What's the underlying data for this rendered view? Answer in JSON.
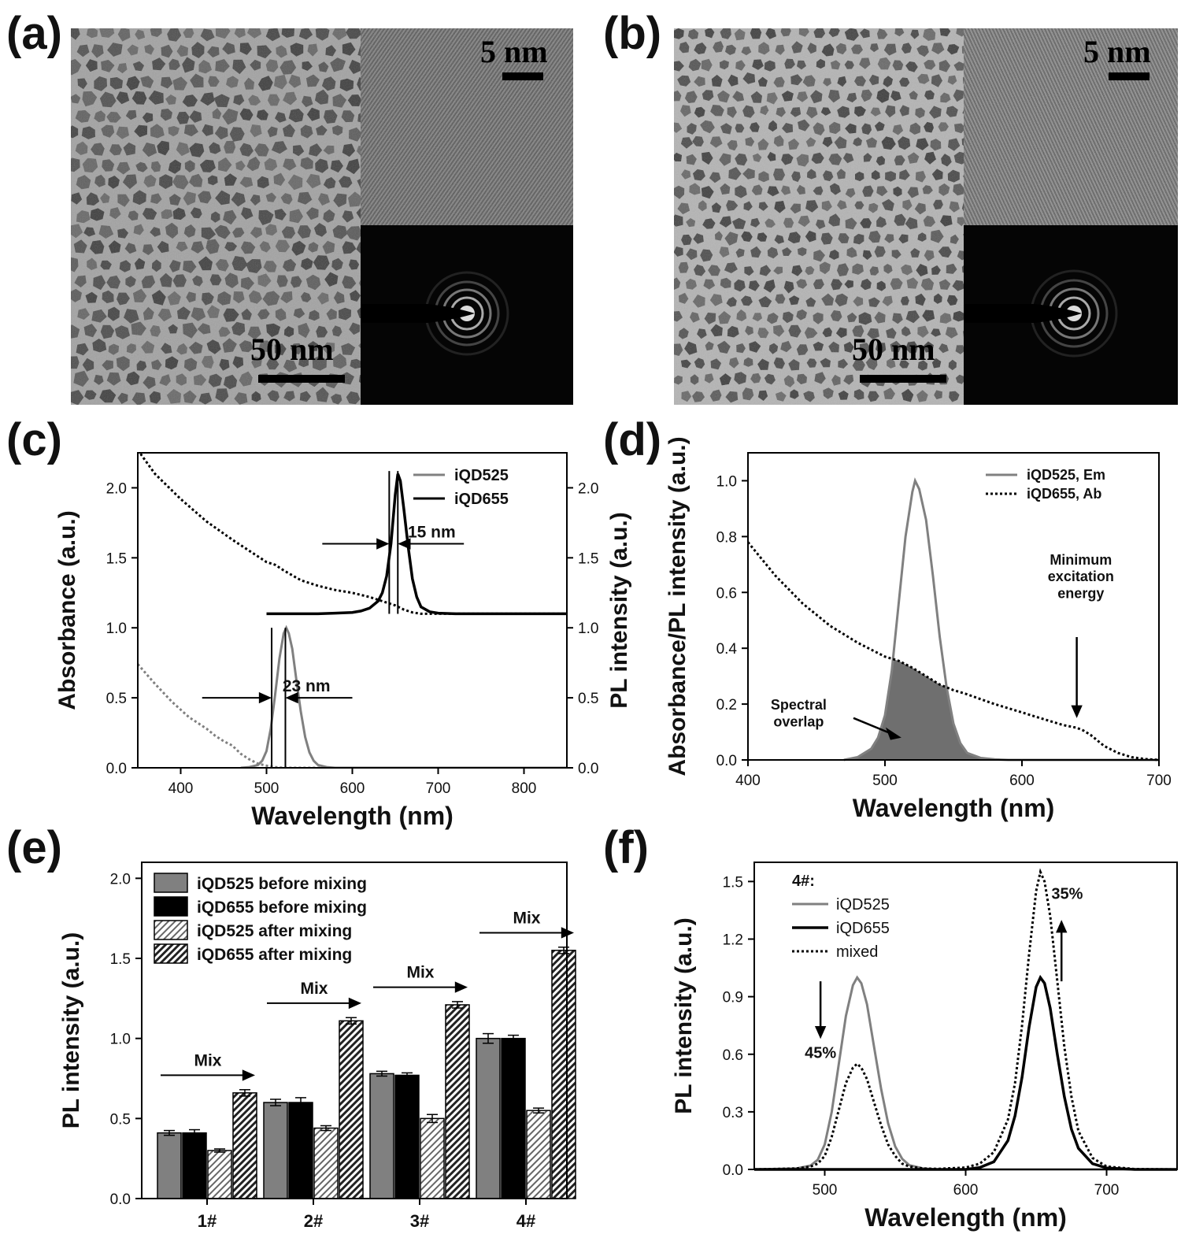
{
  "panels": {
    "a": {
      "label": "(a)",
      "main_scale": "50 nm",
      "inset_scale": "5 nm"
    },
    "b": {
      "label": "(b)",
      "main_scale": "50 nm",
      "inset_scale": "5 nm"
    },
    "c": {
      "label": "(c)"
    },
    "d": {
      "label": "(d)"
    },
    "e": {
      "label": "(e)"
    },
    "f": {
      "label": "(f)"
    }
  },
  "chart_data": [
    {
      "id": "c",
      "type": "line",
      "xlabel": "Wavelength (nm)",
      "ylabel": "Absorbance (a.u.)",
      "ylabel_right": "PL intensity (a.u.)",
      "xlim": [
        350,
        850
      ],
      "ylim": [
        0,
        2.25
      ],
      "x_ticks": [
        400,
        500,
        600,
        700,
        800
      ],
      "y_ticks": [
        "0.0",
        "0.5",
        "1.0",
        "1.5",
        "2.0"
      ],
      "grid": false,
      "legend_position": "top-right",
      "legend": [
        "iQD525",
        "iQD655"
      ],
      "series": [
        {
          "name": "iQD525",
          "style": "gray-solid",
          "role": "PL",
          "x": [
            470,
            480,
            490,
            495,
            500,
            505,
            510,
            515,
            520,
            523,
            526,
            530,
            535,
            540,
            545,
            550,
            555,
            560,
            570,
            580,
            600,
            700,
            850
          ],
          "y": [
            0,
            0.005,
            0.02,
            0.05,
            0.12,
            0.28,
            0.52,
            0.78,
            0.96,
            1.0,
            0.96,
            0.85,
            0.62,
            0.4,
            0.22,
            0.11,
            0.05,
            0.02,
            0.005,
            0,
            0,
            0,
            0
          ]
        },
        {
          "name": "iQD525",
          "style": "gray-dotted",
          "role": "Absorbance",
          "x": [
            350,
            370,
            390,
            410,
            420,
            430,
            440,
            450,
            460,
            470,
            480,
            490,
            500,
            510,
            520,
            600,
            700,
            850
          ],
          "y": [
            0.74,
            0.6,
            0.47,
            0.36,
            0.32,
            0.28,
            0.23,
            0.19,
            0.16,
            0.1,
            0.06,
            0.03,
            0.015,
            0.005,
            0,
            0,
            0,
            0
          ]
        },
        {
          "name": "iQD655",
          "style": "black-solid",
          "role": "PL (offset +1.1)",
          "x": [
            500,
            560,
            580,
            600,
            610,
            620,
            630,
            635,
            640,
            645,
            650,
            653,
            656,
            660,
            665,
            670,
            675,
            680,
            690,
            700,
            720,
            850
          ],
          "y": [
            1.1,
            1.1,
            1.105,
            1.11,
            1.12,
            1.14,
            1.19,
            1.25,
            1.37,
            1.6,
            1.95,
            2.1,
            2.05,
            1.85,
            1.58,
            1.35,
            1.22,
            1.15,
            1.115,
            1.105,
            1.1,
            1.1
          ]
        },
        {
          "name": "iQD655",
          "style": "black-dotted",
          "role": "Absorbance",
          "x": [
            350,
            370,
            400,
            430,
            460,
            490,
            500,
            510,
            520,
            540,
            560,
            580,
            600,
            620,
            640,
            650,
            660,
            670,
            680,
            700,
            850
          ],
          "y": [
            2.27,
            2.1,
            1.92,
            1.76,
            1.63,
            1.51,
            1.47,
            1.45,
            1.41,
            1.34,
            1.3,
            1.27,
            1.25,
            1.22,
            1.18,
            1.16,
            1.13,
            1.11,
            1.1,
            1.1,
            1.1
          ]
        }
      ],
      "annotations": [
        {
          "text": "23 nm",
          "x": 515,
          "y": 0.58
        },
        {
          "text": "15 nm",
          "x": 661,
          "y": 1.68
        }
      ],
      "fwhm_lines": [
        {
          "x1": 506,
          "x2": 522,
          "y_low": 0,
          "y_high": 1.0,
          "arrow_y": 0.5,
          "left_arrow_from": 425,
          "right_arrow_to": 600
        },
        {
          "x1": 643,
          "x2": 653,
          "y_low": 1.1,
          "y_high": 2.12,
          "arrow_y": 1.6,
          "left_arrow_from": 565,
          "right_arrow_to": 730
        }
      ]
    },
    {
      "id": "d",
      "type": "area",
      "xlabel": "Wavelength (nm)",
      "ylabel": "Absorbance/PL intensity (a.u.)",
      "xlim": [
        400,
        700
      ],
      "ylim": [
        0,
        1.1
      ],
      "x_ticks": [
        400,
        500,
        600,
        700
      ],
      "y_ticks": [
        "0.0",
        "0.2",
        "0.4",
        "0.6",
        "0.8",
        "1.0"
      ],
      "grid": false,
      "legend_position": "top-right",
      "legend": [
        "iQD525, Em",
        "iQD655, Ab"
      ],
      "series": [
        {
          "name": "iQD525, Em",
          "style": "gray-solid",
          "x": [
            470,
            480,
            490,
            495,
            500,
            505,
            510,
            515,
            520,
            522,
            525,
            530,
            535,
            540,
            545,
            550,
            555,
            560,
            570,
            580,
            590,
            700
          ],
          "y": [
            0,
            0.01,
            0.04,
            0.08,
            0.16,
            0.32,
            0.56,
            0.8,
            0.96,
            1.0,
            0.97,
            0.86,
            0.66,
            0.44,
            0.26,
            0.13,
            0.06,
            0.025,
            0.007,
            0.002,
            0,
            0
          ]
        },
        {
          "name": "iQD655, Ab",
          "style": "black-dotted",
          "x": [
            400,
            420,
            440,
            460,
            480,
            490,
            500,
            510,
            520,
            530,
            540,
            550,
            560,
            580,
            600,
            620,
            630,
            640,
            645,
            650,
            655,
            660,
            670,
            680,
            690,
            700
          ],
          "y": [
            0.78,
            0.66,
            0.56,
            0.48,
            0.42,
            0.395,
            0.37,
            0.355,
            0.33,
            0.3,
            0.27,
            0.25,
            0.235,
            0.2,
            0.17,
            0.14,
            0.125,
            0.115,
            0.105,
            0.09,
            0.07,
            0.05,
            0.025,
            0.01,
            0.003,
            0
          ]
        }
      ],
      "filled_overlap": "min of both curves, gray fill",
      "annotations": [
        {
          "text": "Spectral",
          "x": 437,
          "y": 0.18
        },
        {
          "text": "overlap",
          "x": 437,
          "y": 0.12
        },
        {
          "text": "Minimum",
          "x": 643,
          "y": 0.7
        },
        {
          "text": "excitation",
          "x": 643,
          "y": 0.64
        },
        {
          "text": "energy",
          "x": 643,
          "y": 0.58
        }
      ],
      "arrows": [
        {
          "from": [
            477,
            0.15
          ],
          "to": [
            512,
            0.08
          ]
        },
        {
          "from": [
            640,
            0.44
          ],
          "to": [
            640,
            0.15
          ]
        }
      ]
    },
    {
      "id": "e",
      "type": "bar",
      "xlabel": "",
      "ylabel": "PL intensity (a.u.)",
      "ylim": [
        0,
        2.1
      ],
      "y_ticks": [
        "0.0",
        "0.5",
        "1.0",
        "1.5",
        "2.0"
      ],
      "categories": [
        "1#",
        "2#",
        "3#",
        "4#"
      ],
      "grid": false,
      "legend_position": "top-left",
      "series": [
        {
          "name": "iQD525 before mixing",
          "style": "gray",
          "values": [
            0.41,
            0.6,
            0.78,
            1.0
          ],
          "errors": [
            0.015,
            0.02,
            0.015,
            0.03
          ]
        },
        {
          "name": "iQD655 before mixing",
          "style": "black",
          "values": [
            0.41,
            0.6,
            0.77,
            1.0
          ],
          "errors": [
            0.02,
            0.03,
            0.015,
            0.02
          ]
        },
        {
          "name": "iQD525 after mixing",
          "style": "light-hatch",
          "values": [
            0.3,
            0.44,
            0.5,
            0.55
          ],
          "errors": [
            0.01,
            0.015,
            0.025,
            0.015
          ]
        },
        {
          "name": "iQD655 after mixing",
          "style": "dark-hatch",
          "values": [
            0.66,
            1.11,
            1.21,
            1.55
          ],
          "errors": [
            0.02,
            0.02,
            0.02,
            0.02
          ]
        }
      ],
      "annotations": [
        {
          "text": "Mix",
          "category": "1#",
          "y": 0.77
        },
        {
          "text": "Mix",
          "category": "2#",
          "y": 1.22
        },
        {
          "text": "Mix",
          "category": "3#",
          "y": 1.32
        },
        {
          "text": "Mix",
          "category": "4#",
          "y": 1.66
        }
      ]
    },
    {
      "id": "f",
      "type": "line",
      "xlabel": "Wavelength (nm)",
      "ylabel": "PL intensity (a.u.)",
      "xlim": [
        450,
        750
      ],
      "ylim": [
        0,
        1.6
      ],
      "x_ticks": [
        500,
        600,
        700
      ],
      "y_ticks": [
        "0.0",
        "0.3",
        "0.6",
        "0.9",
        "1.2",
        "1.5"
      ],
      "grid": false,
      "legend_position": "top-left",
      "legend_title": "4#:",
      "legend": [
        "iQD525",
        "iQD655",
        "mixed"
      ],
      "series": [
        {
          "name": "iQD525",
          "style": "gray-solid",
          "x": [
            450,
            480,
            490,
            495,
            500,
            505,
            510,
            515,
            520,
            523,
            526,
            530,
            535,
            540,
            545,
            550,
            555,
            560,
            570,
            580,
            600,
            750
          ],
          "y": [
            0,
            0.005,
            0.02,
            0.05,
            0.13,
            0.3,
            0.55,
            0.8,
            0.96,
            1.0,
            0.97,
            0.86,
            0.64,
            0.42,
            0.24,
            0.12,
            0.055,
            0.022,
            0.005,
            0,
            0,
            0
          ]
        },
        {
          "name": "iQD655",
          "style": "black-solid",
          "x": [
            450,
            600,
            610,
            620,
            630,
            635,
            640,
            645,
            650,
            653,
            656,
            660,
            665,
            670,
            675,
            680,
            690,
            700,
            720,
            750
          ],
          "y": [
            0,
            0,
            0.01,
            0.04,
            0.15,
            0.28,
            0.48,
            0.74,
            0.95,
            1.0,
            0.97,
            0.84,
            0.6,
            0.38,
            0.21,
            0.11,
            0.03,
            0.008,
            0,
            0
          ]
        },
        {
          "name": "mixed",
          "style": "black-dotted",
          "x": [
            450,
            480,
            490,
            495,
            500,
            505,
            510,
            515,
            520,
            523,
            526,
            530,
            535,
            540,
            545,
            550,
            555,
            560,
            570,
            580,
            600,
            610,
            620,
            630,
            635,
            640,
            645,
            650,
            653,
            656,
            660,
            665,
            670,
            675,
            680,
            690,
            700,
            720,
            750
          ],
          "y": [
            0,
            0.005,
            0.015,
            0.03,
            0.07,
            0.17,
            0.31,
            0.45,
            0.53,
            0.55,
            0.53,
            0.47,
            0.35,
            0.23,
            0.13,
            0.07,
            0.03,
            0.015,
            0.005,
            0.003,
            0.01,
            0.03,
            0.09,
            0.26,
            0.45,
            0.75,
            1.12,
            1.45,
            1.55,
            1.5,
            1.32,
            0.98,
            0.64,
            0.38,
            0.2,
            0.06,
            0.015,
            0.002,
            0
          ]
        }
      ],
      "annotations": [
        {
          "text": "45%",
          "x": 497,
          "y": 0.58
        },
        {
          "text": "35%",
          "x": 672,
          "y": 1.41
        }
      ],
      "arrows": [
        {
          "from": [
            497,
            0.98
          ],
          "to": [
            497,
            0.68
          ]
        },
        {
          "from": [
            668,
            0.98
          ],
          "to": [
            668,
            1.3
          ]
        }
      ]
    }
  ]
}
